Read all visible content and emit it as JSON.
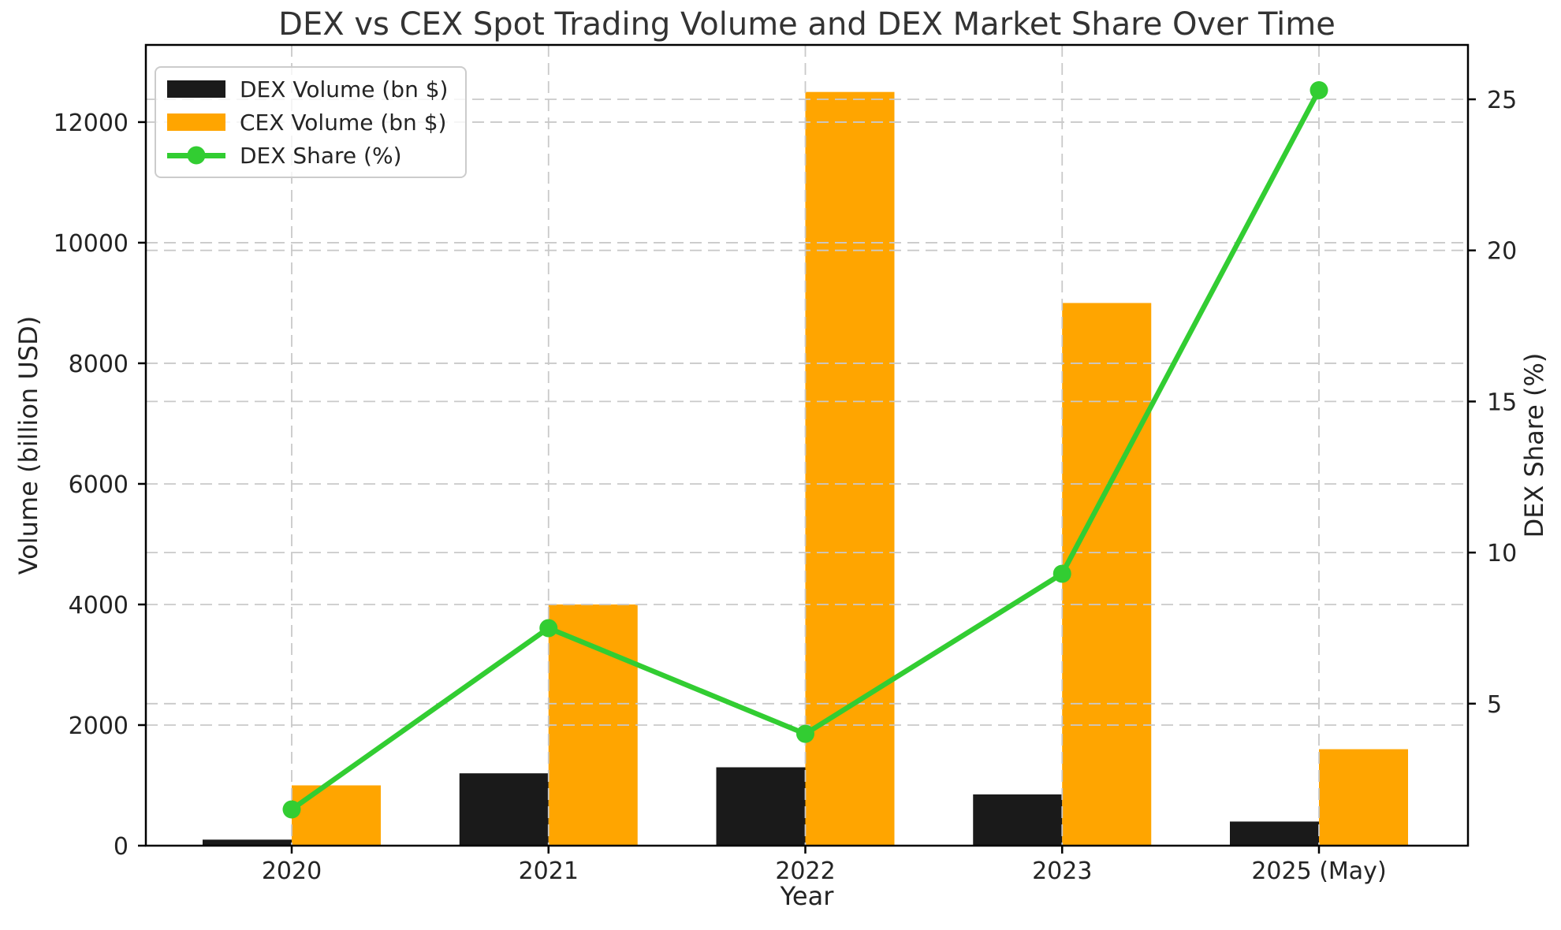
{
  "chart_data": {
    "type": "bar+line",
    "title": "DEX vs CEX Spot Trading Volume and DEX Market Share Over Time",
    "xlabel": "Year",
    "ylabel_left": "Volume (billion USD)",
    "ylabel_right": "DEX Share (%)",
    "categories": [
      "2020",
      "2021",
      "2022",
      "2023",
      "2025 (May)"
    ],
    "series": [
      {
        "name": "DEX Volume (bn $)",
        "type": "bar",
        "axis": "left",
        "color": "#1a1a1a",
        "values": [
          100,
          1200,
          1300,
          850,
          400
        ]
      },
      {
        "name": "CEX Volume (bn $)",
        "type": "bar",
        "axis": "left",
        "color": "#FFA500",
        "values": [
          1000,
          4000,
          12500,
          9000,
          1600
        ]
      },
      {
        "name": "DEX Share (%)",
        "type": "line",
        "axis": "right",
        "color": "#32CD32",
        "values": [
          1.5,
          7.5,
          4.0,
          9.3,
          25.3
        ]
      }
    ],
    "left_axis": {
      "ticks": [
        0,
        2000,
        4000,
        6000,
        8000,
        10000,
        12000
      ],
      "range": [
        0,
        13280
      ]
    },
    "right_axis": {
      "ticks": [
        5,
        10,
        15,
        20,
        25
      ],
      "range": [
        0.3,
        26.8
      ]
    },
    "grid": true,
    "grid_over_bars": true,
    "legend_position": "upper left",
    "colors": {
      "dex_bar": "#1a1a1a",
      "cex_bar": "#FFA500",
      "share_line": "#32CD32",
      "grid": "#c9c9c9",
      "text": "#242424",
      "spine": "#000000",
      "background": "#ffffff"
    }
  }
}
